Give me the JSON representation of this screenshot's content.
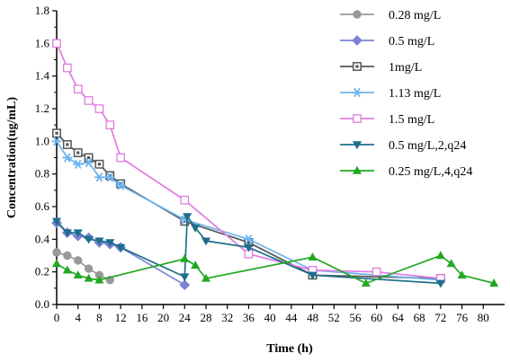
{
  "chart_data": {
    "type": "line",
    "title": "",
    "xlabel": "Time (h)",
    "ylabel": "Concentration(ug/mL)",
    "xlim": [
      0,
      84
    ],
    "ylim": [
      0,
      1.8
    ],
    "x_ticks": [
      "0",
      "4",
      "8",
      "12",
      "16",
      "20",
      "24",
      "28",
      "32",
      "36",
      "40",
      "44",
      "48",
      "52",
      "56",
      "60",
      "64",
      "68",
      "72",
      "76",
      "80"
    ],
    "y_ticks": [
      "0.0",
      "0.2",
      "0.4",
      "0.6",
      "0.8",
      "1.0",
      "1.2",
      "1.4",
      "1.6",
      "1.8"
    ],
    "grid": false,
    "legend_position": "top-right",
    "series": [
      {
        "name": "0.28 mg/L",
        "color": "#999999",
        "marker": "circle",
        "x": [
          0,
          2,
          4,
          6,
          8,
          10
        ],
        "y": [
          0.32,
          0.3,
          0.27,
          0.22,
          0.18,
          0.15
        ]
      },
      {
        "name": "0.5 mg/L",
        "color": "#7B85D4",
        "marker": "diamond",
        "x": [
          0,
          2,
          4,
          6,
          8,
          10,
          12,
          24
        ],
        "y": [
          0.5,
          0.44,
          0.42,
          0.41,
          0.38,
          0.37,
          0.35,
          0.12
        ]
      },
      {
        "name": "1mg/L",
        "color": "#555555",
        "marker": "square-dot",
        "x": [
          0,
          2,
          4,
          6,
          8,
          10,
          12,
          24,
          36,
          48,
          72
        ],
        "y": [
          1.05,
          0.98,
          0.93,
          0.9,
          0.86,
          0.79,
          0.74,
          0.51,
          0.38,
          0.18,
          0.16
        ]
      },
      {
        "name": "1.13 mg/L",
        "color": "#6CB4EE",
        "marker": "asterisk",
        "x": [
          0,
          2,
          4,
          6,
          8,
          10,
          12,
          24,
          36,
          48,
          72
        ],
        "y": [
          1.0,
          0.9,
          0.86,
          0.87,
          0.78,
          0.78,
          0.73,
          0.52,
          0.4,
          0.21,
          0.15
        ]
      },
      {
        "name": "1.5 mg/L",
        "color": "#E07BE0",
        "marker": "square",
        "x": [
          0,
          2,
          4,
          6,
          8,
          10,
          12,
          24,
          36,
          48,
          60,
          72
        ],
        "y": [
          1.6,
          1.45,
          1.32,
          1.25,
          1.2,
          1.1,
          0.9,
          0.64,
          0.31,
          0.21,
          0.2,
          0.16
        ]
      },
      {
        "name": "0.5 mg/L,2,q24",
        "color": "#1F6E8C",
        "marker": "triangle-down",
        "x": [
          0,
          2,
          4,
          6,
          8,
          10,
          12,
          24,
          24.5,
          26,
          28,
          36,
          48,
          72
        ],
        "y": [
          0.51,
          0.44,
          0.44,
          0.4,
          0.39,
          0.38,
          0.35,
          0.17,
          0.54,
          0.47,
          0.39,
          0.35,
          0.18,
          0.13
        ]
      },
      {
        "name": "0.25 mg/L,4,q24",
        "color": "#22A822",
        "marker": "triangle-up",
        "x": [
          0,
          2,
          4,
          6,
          8,
          24,
          26,
          28,
          48,
          58,
          72,
          74,
          76,
          82
        ],
        "y": [
          0.25,
          0.21,
          0.18,
          0.16,
          0.15,
          0.28,
          0.24,
          0.16,
          0.29,
          0.13,
          0.3,
          0.25,
          0.18,
          0.13
        ]
      }
    ]
  }
}
